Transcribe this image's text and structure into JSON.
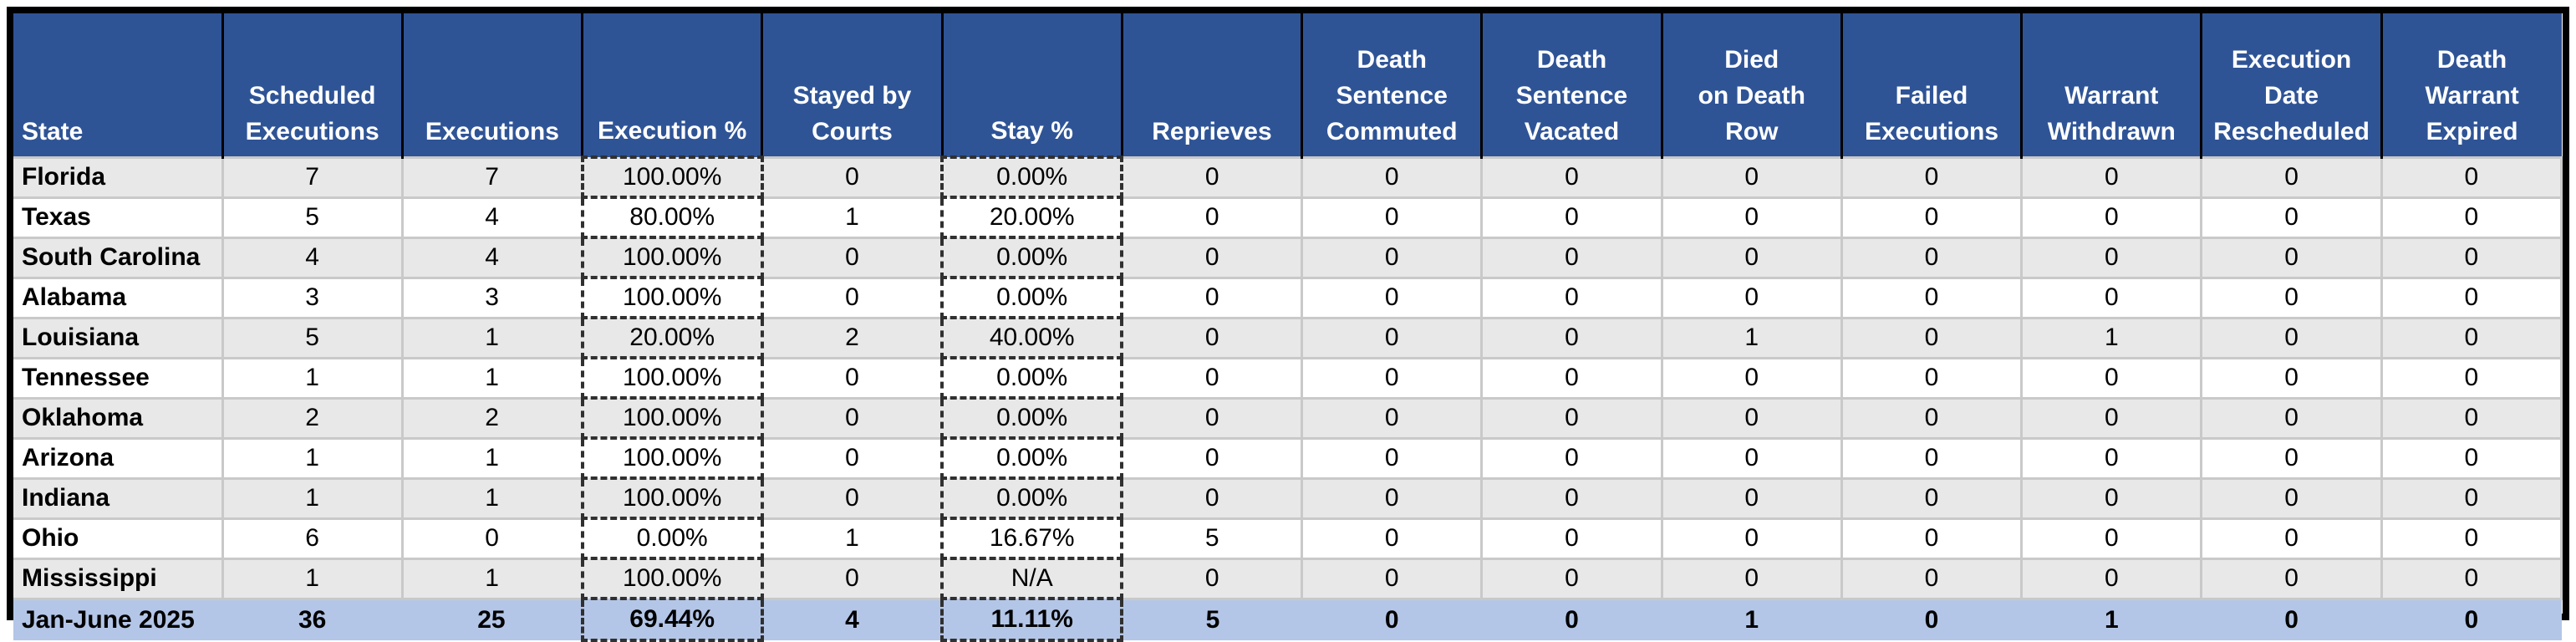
{
  "chart_data": {
    "type": "table",
    "columns": [
      {
        "key": "state",
        "label": "State",
        "dashed": false
      },
      {
        "key": "scheduled",
        "label": "Scheduled\nExecutions",
        "dashed": false
      },
      {
        "key": "executions",
        "label": "Executions",
        "dashed": false
      },
      {
        "key": "execution_pct",
        "label": "Execution %",
        "dashed": true
      },
      {
        "key": "stayed",
        "label": "Stayed by\nCourts",
        "dashed": false
      },
      {
        "key": "stay_pct",
        "label": "Stay %",
        "dashed": true
      },
      {
        "key": "reprieves",
        "label": "Reprieves",
        "dashed": false
      },
      {
        "key": "commuted",
        "label": "Death\nSentence\nCommuted",
        "dashed": false
      },
      {
        "key": "vacated",
        "label": "Death\nSentence\nVacated",
        "dashed": false
      },
      {
        "key": "died",
        "label": "Died\non Death\nRow",
        "dashed": false
      },
      {
        "key": "failed",
        "label": "Failed\nExecutions",
        "dashed": false
      },
      {
        "key": "withdrawn",
        "label": "Warrant\nWithdrawn",
        "dashed": false
      },
      {
        "key": "rescheduled",
        "label": "Execution\nDate\nRescheduled",
        "dashed": false
      },
      {
        "key": "expired",
        "label": "Death\nWarrant\nExpired",
        "dashed": false
      }
    ],
    "rows": [
      [
        "Florida",
        "7",
        "7",
        "100.00%",
        "0",
        "0.00%",
        "0",
        "0",
        "0",
        "0",
        "0",
        "0",
        "0",
        "0"
      ],
      [
        "Texas",
        "5",
        "4",
        "80.00%",
        "1",
        "20.00%",
        "0",
        "0",
        "0",
        "0",
        "0",
        "0",
        "0",
        "0"
      ],
      [
        "South Carolina",
        "4",
        "4",
        "100.00%",
        "0",
        "0.00%",
        "0",
        "0",
        "0",
        "0",
        "0",
        "0",
        "0",
        "0"
      ],
      [
        "Alabama",
        "3",
        "3",
        "100.00%",
        "0",
        "0.00%",
        "0",
        "0",
        "0",
        "0",
        "0",
        "0",
        "0",
        "0"
      ],
      [
        "Louisiana",
        "5",
        "1",
        "20.00%",
        "2",
        "40.00%",
        "0",
        "0",
        "0",
        "1",
        "0",
        "1",
        "0",
        "0"
      ],
      [
        "Tennessee",
        "1",
        "1",
        "100.00%",
        "0",
        "0.00%",
        "0",
        "0",
        "0",
        "0",
        "0",
        "0",
        "0",
        "0"
      ],
      [
        "Oklahoma",
        "2",
        "2",
        "100.00%",
        "0",
        "0.00%",
        "0",
        "0",
        "0",
        "0",
        "0",
        "0",
        "0",
        "0"
      ],
      [
        "Arizona",
        "1",
        "1",
        "100.00%",
        "0",
        "0.00%",
        "0",
        "0",
        "0",
        "0",
        "0",
        "0",
        "0",
        "0"
      ],
      [
        "Indiana",
        "1",
        "1",
        "100.00%",
        "0",
        "0.00%",
        "0",
        "0",
        "0",
        "0",
        "0",
        "0",
        "0",
        "0"
      ],
      [
        "Ohio",
        "6",
        "0",
        "0.00%",
        "1",
        "16.67%",
        "5",
        "0",
        "0",
        "0",
        "0",
        "0",
        "0",
        "0"
      ],
      [
        "Mississippi",
        "1",
        "1",
        "100.00%",
        "0",
        "N/A",
        "0",
        "0",
        "0",
        "0",
        "0",
        "0",
        "0",
        "0"
      ]
    ],
    "total_row": [
      "Jan-June 2025",
      "36",
      "25",
      "69.44%",
      "4",
      "11.11%",
      "5",
      "0",
      "0",
      "1",
      "0",
      "1",
      "0",
      "0"
    ],
    "colors": {
      "header_bg": "#2F5496",
      "header_text": "#FFFFFF",
      "stripe_bg": "#E9E8E8",
      "row_bg": "#FFFFFF",
      "total_bg": "#B4C6E7",
      "grid_line": "#C9C9C9",
      "frame": "#000000",
      "text": "#000000"
    },
    "layout_hints": {
      "striped": true,
      "header_vertical_align": "bottom",
      "dashed_marching_ants_columns": [
        "Execution %",
        "Stay %"
      ]
    }
  }
}
